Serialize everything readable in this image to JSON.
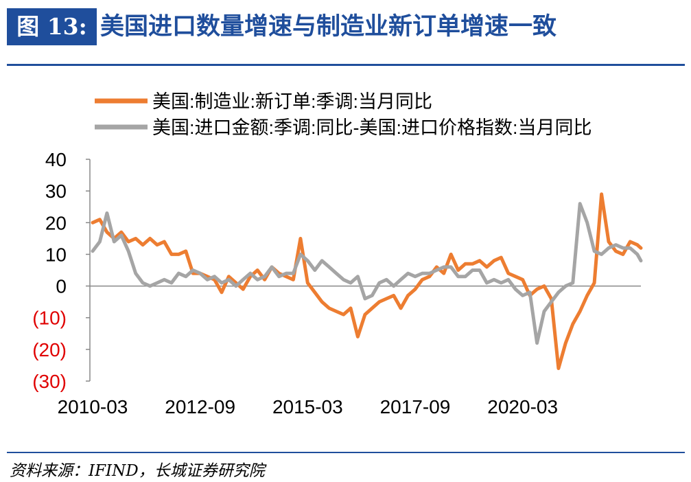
{
  "header": {
    "figure_label": "图 13:",
    "title": "美国进口数量增速与制造业新订单增速一致"
  },
  "footer": {
    "source": "资料来源：IFIND，长城证券研究院"
  },
  "colors": {
    "brand": "#1f4e9c",
    "orange": "#ed7d31",
    "gray": "#a5a5a5",
    "negative_tick": "#e00000"
  },
  "chart_data": {
    "type": "line",
    "xlabel": "",
    "ylabel": "",
    "ylim": [
      -30,
      40
    ],
    "yticks": [
      40,
      30,
      20,
      10,
      0,
      -10,
      -20,
      -30
    ],
    "ytick_labels": [
      "40",
      "30",
      "20",
      "10",
      "0",
      "(10)",
      "(20)",
      "(30)"
    ],
    "x_start": "2010-03",
    "x_end": "2022-12",
    "x_ticks": [
      "2010-03",
      "2012-09",
      "2015-03",
      "2017-09",
      "2020-03"
    ],
    "legend_position": "top",
    "series": [
      {
        "name": "美国:制造业:新订单:季调:当月同比",
        "color": "#ed7d31",
        "points": [
          [
            "2010-03",
            20
          ],
          [
            "2010-05",
            21
          ],
          [
            "2010-07",
            17
          ],
          [
            "2010-09",
            15
          ],
          [
            "2010-11",
            17
          ],
          [
            "2011-01",
            14
          ],
          [
            "2011-03",
            15
          ],
          [
            "2011-05",
            13
          ],
          [
            "2011-07",
            15
          ],
          [
            "2011-09",
            13
          ],
          [
            "2011-11",
            14
          ],
          [
            "2012-01",
            10
          ],
          [
            "2012-03",
            10
          ],
          [
            "2012-05",
            11
          ],
          [
            "2012-07",
            4
          ],
          [
            "2012-09",
            4
          ],
          [
            "2012-11",
            3
          ],
          [
            "2013-01",
            2
          ],
          [
            "2013-03",
            -2
          ],
          [
            "2013-05",
            3
          ],
          [
            "2013-07",
            1
          ],
          [
            "2013-09",
            -1
          ],
          [
            "2013-11",
            3
          ],
          [
            "2014-01",
            5
          ],
          [
            "2014-03",
            2
          ],
          [
            "2014-05",
            6
          ],
          [
            "2014-07",
            4
          ],
          [
            "2014-09",
            3
          ],
          [
            "2014-11",
            2
          ],
          [
            "2015-01",
            15
          ],
          [
            "2015-03",
            1
          ],
          [
            "2015-05",
            -2
          ],
          [
            "2015-07",
            -5
          ],
          [
            "2015-09",
            -7
          ],
          [
            "2015-11",
            -8
          ],
          [
            "2016-01",
            -9
          ],
          [
            "2016-03",
            -7
          ],
          [
            "2016-05",
            -16
          ],
          [
            "2016-07",
            -9
          ],
          [
            "2016-09",
            -7
          ],
          [
            "2016-11",
            -5
          ],
          [
            "2017-01",
            -4
          ],
          [
            "2017-03",
            -3
          ],
          [
            "2017-05",
            -7
          ],
          [
            "2017-07",
            -3
          ],
          [
            "2017-09",
            -1
          ],
          [
            "2017-11",
            2
          ],
          [
            "2018-01",
            3
          ],
          [
            "2018-03",
            6
          ],
          [
            "2018-05",
            4
          ],
          [
            "2018-07",
            10
          ],
          [
            "2018-09",
            5
          ],
          [
            "2018-11",
            7
          ],
          [
            "2019-01",
            7
          ],
          [
            "2019-03",
            8
          ],
          [
            "2019-05",
            6
          ],
          [
            "2019-07",
            8
          ],
          [
            "2019-09",
            9
          ],
          [
            "2019-11",
            4
          ],
          [
            "2020-01",
            3
          ],
          [
            "2020-03",
            2
          ],
          [
            "2020-05",
            -3
          ],
          [
            "2020-07",
            -1
          ],
          [
            "2020-09",
            0
          ],
          [
            "2020-11",
            -4
          ],
          [
            "2021-01",
            -26
          ],
          [
            "2021-03",
            -18
          ],
          [
            "2021-05",
            -12
          ],
          [
            "2021-07",
            -8
          ],
          [
            "2021-09",
            -3
          ],
          [
            "2021-11",
            1
          ],
          [
            "2022-01",
            29
          ],
          [
            "2022-03",
            14
          ],
          [
            "2022-05",
            11
          ],
          [
            "2022-07",
            10
          ],
          [
            "2022-09",
            14
          ],
          [
            "2022-11",
            13
          ],
          [
            "2022-12",
            12
          ]
        ]
      },
      {
        "name": "美国:进口金额:季调:同比-美国:进口价格指数:当月同比",
        "color": "#a5a5a5",
        "points": [
          [
            "2010-03",
            11
          ],
          [
            "2010-05",
            14
          ],
          [
            "2010-07",
            23
          ],
          [
            "2010-09",
            14
          ],
          [
            "2010-11",
            16
          ],
          [
            "2011-01",
            11
          ],
          [
            "2011-03",
            4
          ],
          [
            "2011-05",
            1
          ],
          [
            "2011-07",
            0
          ],
          [
            "2011-09",
            1
          ],
          [
            "2011-11",
            2
          ],
          [
            "2012-01",
            1
          ],
          [
            "2012-03",
            4
          ],
          [
            "2012-05",
            3
          ],
          [
            "2012-07",
            5
          ],
          [
            "2012-09",
            4
          ],
          [
            "2012-11",
            2
          ],
          [
            "2013-01",
            3
          ],
          [
            "2013-03",
            1
          ],
          [
            "2013-05",
            2
          ],
          [
            "2013-07",
            0
          ],
          [
            "2013-09",
            2
          ],
          [
            "2013-11",
            4
          ],
          [
            "2014-01",
            2
          ],
          [
            "2014-03",
            3
          ],
          [
            "2014-05",
            6
          ],
          [
            "2014-07",
            3
          ],
          [
            "2014-09",
            4
          ],
          [
            "2014-11",
            4
          ],
          [
            "2015-01",
            10
          ],
          [
            "2015-03",
            8
          ],
          [
            "2015-05",
            5
          ],
          [
            "2015-07",
            8
          ],
          [
            "2015-09",
            6
          ],
          [
            "2015-11",
            4
          ],
          [
            "2016-01",
            2
          ],
          [
            "2016-03",
            1
          ],
          [
            "2016-05",
            3
          ],
          [
            "2016-07",
            -4
          ],
          [
            "2016-09",
            -3
          ],
          [
            "2016-11",
            1
          ],
          [
            "2017-01",
            2
          ],
          [
            "2017-03",
            0
          ],
          [
            "2017-05",
            2
          ],
          [
            "2017-07",
            4
          ],
          [
            "2017-09",
            3
          ],
          [
            "2017-11",
            4
          ],
          [
            "2018-01",
            4
          ],
          [
            "2018-03",
            5
          ],
          [
            "2018-05",
            6
          ],
          [
            "2018-07",
            6
          ],
          [
            "2018-09",
            3
          ],
          [
            "2018-11",
            3
          ],
          [
            "2019-01",
            5
          ],
          [
            "2019-03",
            5
          ],
          [
            "2019-05",
            1
          ],
          [
            "2019-07",
            2
          ],
          [
            "2019-09",
            1
          ],
          [
            "2019-11",
            2
          ],
          [
            "2020-01",
            -1
          ],
          [
            "2020-03",
            -3
          ],
          [
            "2020-05",
            -2
          ],
          [
            "2020-07",
            -18
          ],
          [
            "2020-09",
            -8
          ],
          [
            "2020-11",
            -5
          ],
          [
            "2021-01",
            -2
          ],
          [
            "2021-03",
            0
          ],
          [
            "2021-05",
            1
          ],
          [
            "2021-07",
            26
          ],
          [
            "2021-09",
            20
          ],
          [
            "2021-11",
            11
          ],
          [
            "2022-01",
            10
          ],
          [
            "2022-03",
            12
          ],
          [
            "2022-05",
            13
          ],
          [
            "2022-07",
            12
          ],
          [
            "2022-09",
            12
          ],
          [
            "2022-11",
            10
          ],
          [
            "2022-12",
            8
          ]
        ]
      }
    ]
  }
}
